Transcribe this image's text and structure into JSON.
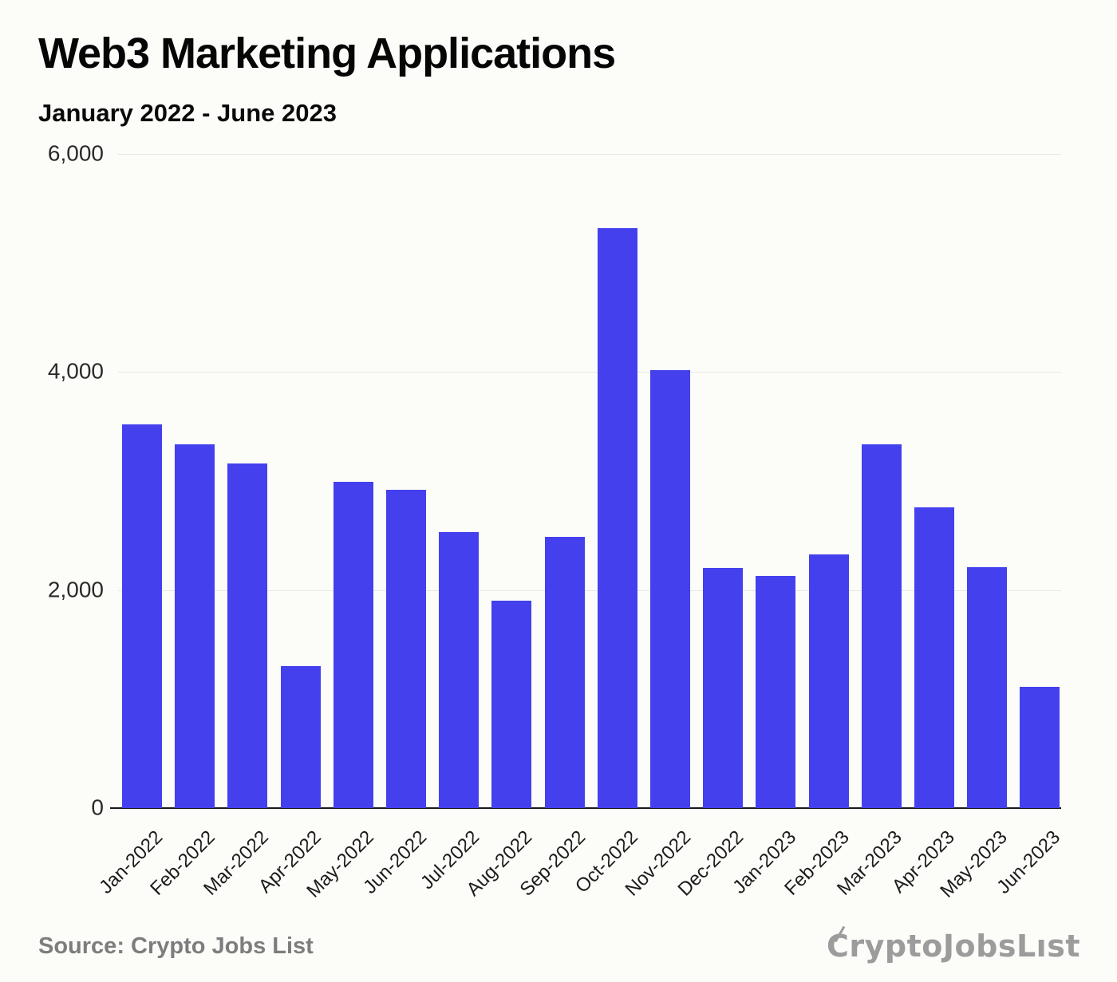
{
  "chart_data": {
    "type": "bar",
    "title": "Web3 Marketing Applications",
    "subtitle": "January 2022 - June 2023",
    "categories": [
      "Jan-2022",
      "Feb-2022",
      "Mar-2022",
      "Apr-2022",
      "May-2022",
      "Jun-2022",
      "Jul-2022",
      "Aug-2022",
      "Sep-2022",
      "Oct-2022",
      "Nov-2022",
      "Dec-2022",
      "Jan-2023",
      "Feb-2023",
      "Mar-2023",
      "Apr-2023",
      "May-2023",
      "Jun-2023"
    ],
    "values": [
      3520,
      3340,
      3160,
      1300,
      2990,
      2920,
      2530,
      1900,
      2490,
      5320,
      4020,
      2200,
      2130,
      2330,
      3340,
      2760,
      2210,
      1110
    ],
    "xlabel": "",
    "ylabel": "",
    "ylim": [
      0,
      6000
    ],
    "yticks": [
      {
        "value": 6000,
        "label": "6,000"
      },
      {
        "value": 4000,
        "label": "4,000"
      },
      {
        "value": 2000,
        "label": "2,000"
      },
      {
        "value": 0,
        "label": "0"
      }
    ],
    "grid": true,
    "legend": false,
    "bar_color": "#4440ee",
    "grid_color": "#e7e7e4",
    "axis_color": "#191919"
  },
  "footer": {
    "source": "Source: Crypto Jobs List",
    "logo_first_letter": "C",
    "logo_rest": "ryptoJobsLıst"
  }
}
